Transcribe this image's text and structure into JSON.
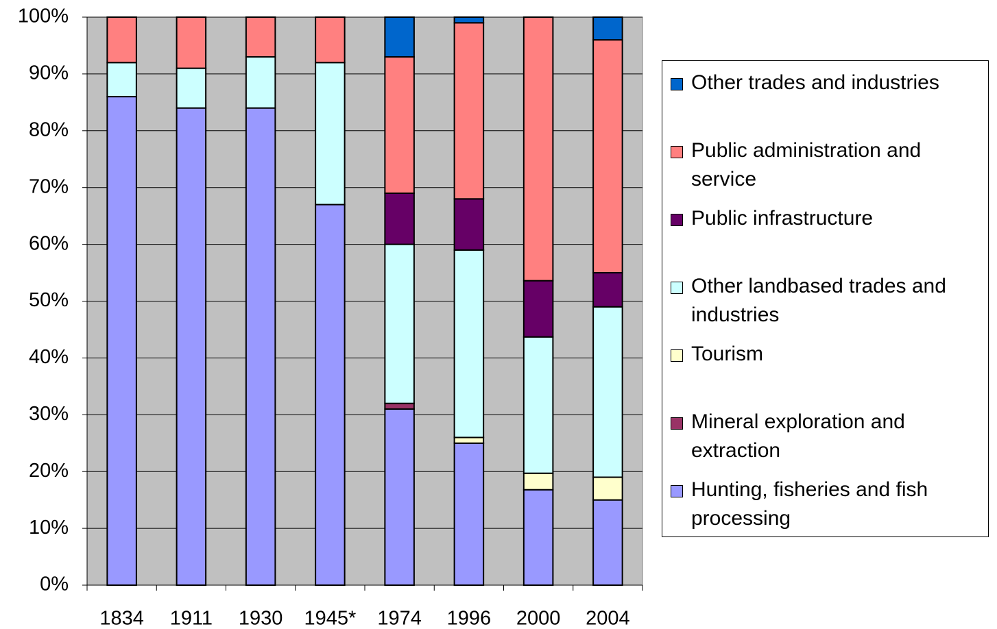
{
  "chart_data": {
    "type": "stacked-bar",
    "categories": [
      "1834",
      "1911",
      "1930",
      "1945*",
      "1974",
      "1996",
      "2000",
      "2004"
    ],
    "series": [
      {
        "name": "Hunting, fisheries and fish processing",
        "color": "#9999ff",
        "values": [
          86,
          84,
          84,
          67,
          31,
          25,
          16.8,
          15
        ]
      },
      {
        "name": "Mineral exploration and extraction",
        "color": "#993366",
        "values": [
          0,
          0,
          0,
          0,
          1,
          0,
          0,
          0
        ]
      },
      {
        "name": "Tourism",
        "color": "#ffffcc",
        "values": [
          0,
          0,
          0,
          0,
          0,
          1,
          2.9,
          4
        ]
      },
      {
        "name": "Other landbased trades and industries",
        "color": "#ccffff",
        "values": [
          6,
          7,
          9,
          25,
          28,
          33,
          24,
          30
        ]
      },
      {
        "name": "Public infrastructure",
        "color": "#660066",
        "values": [
          0,
          0,
          0,
          0,
          9,
          9,
          9.9,
          6
        ]
      },
      {
        "name": "Public administration and service",
        "color": "#ff8080",
        "values": [
          8,
          9,
          7,
          8,
          24,
          31,
          46.4,
          41
        ]
      },
      {
        "name": "Other trades and industries",
        "color": "#0066cc",
        "values": [
          0,
          0,
          0,
          0,
          7,
          1,
          0,
          4
        ]
      }
    ],
    "ylim": [
      0,
      100
    ],
    "yticks": [
      {
        "value": 0,
        "label": "0%"
      },
      {
        "value": 10,
        "label": "10%"
      },
      {
        "value": 20,
        "label": "20%"
      },
      {
        "value": 30,
        "label": "30%"
      },
      {
        "value": 40,
        "label": "40%"
      },
      {
        "value": 50,
        "label": "50%"
      },
      {
        "value": 60,
        "label": "60%"
      },
      {
        "value": 70,
        "label": "70%"
      },
      {
        "value": 80,
        "label": "80%"
      },
      {
        "value": 90,
        "label": "90%"
      },
      {
        "value": 100,
        "label": "100%"
      }
    ],
    "grid": true,
    "legend": "right"
  }
}
